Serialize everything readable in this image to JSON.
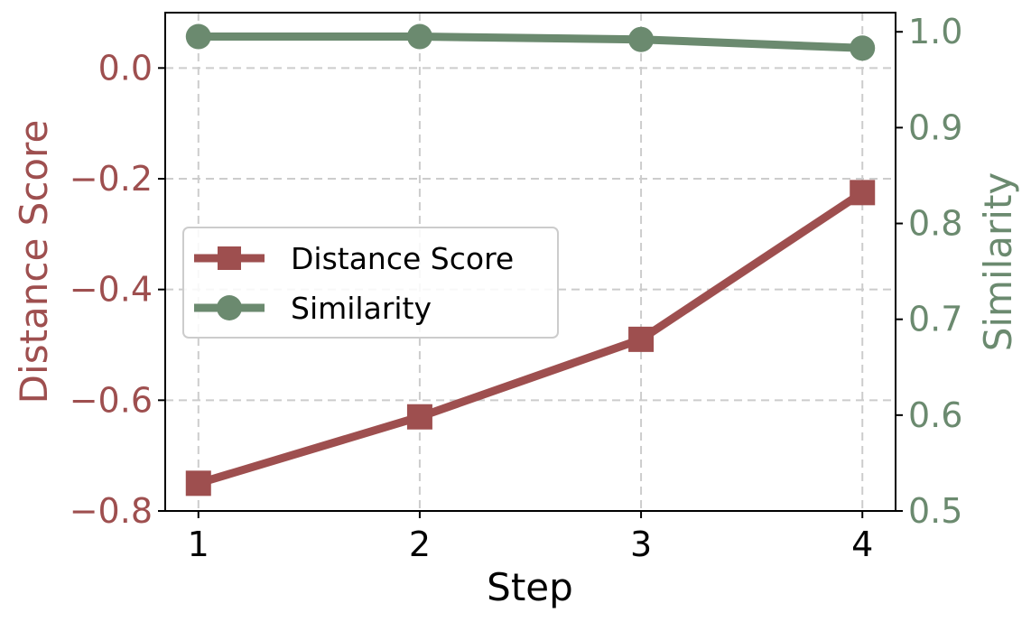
{
  "chart_data": {
    "type": "line",
    "title": "",
    "xlabel": "Step",
    "ylabel_left": "Distance Score",
    "ylabel_right": "Similarity",
    "x": [
      1,
      2,
      3,
      4
    ],
    "x_ticks": [
      "1",
      "2",
      "3",
      "4"
    ],
    "xlim": [
      0.85,
      4.15
    ],
    "ylim_left": [
      -0.8,
      0.1
    ],
    "ylim_right": [
      0.5,
      1.02
    ],
    "y_ticks_left": [
      "0.0",
      "−0.2",
      "−0.4",
      "−0.6",
      "−0.8"
    ],
    "y_ticks_left_values": [
      0.0,
      -0.2,
      -0.4,
      -0.6,
      -0.8
    ],
    "y_ticks_right": [
      "1.0",
      "0.9",
      "0.8",
      "0.7",
      "0.6",
      "0.5"
    ],
    "y_ticks_right_values": [
      1.0,
      0.9,
      0.8,
      0.7,
      0.6,
      0.5
    ],
    "grid": true,
    "legend_position": "center-left",
    "series": [
      {
        "name": "Distance Score",
        "axis": "left",
        "marker": "square",
        "color": "#9e4f4f",
        "values": [
          -0.75,
          -0.63,
          -0.49,
          -0.225
        ]
      },
      {
        "name": "Similarity",
        "axis": "right",
        "marker": "circle",
        "color": "#6b8a6f",
        "values": [
          0.995,
          0.995,
          0.992,
          0.983
        ]
      }
    ],
    "colors": {
      "left_axis": "#9e4f4f",
      "right_axis": "#6b8a6f",
      "grid": "#cccccc",
      "frame": "#000000"
    }
  }
}
